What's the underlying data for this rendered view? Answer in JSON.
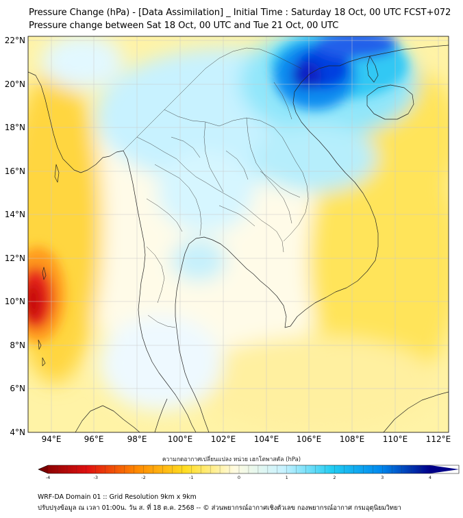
{
  "title": {
    "line1": "Pressure Change (hPa) - [Data Assimilation] _ Initial Time : Saturday 18 Oct, 00 UTC FCST+072",
    "line2": "Pressure change between Sat 18 Oct, 00 UTC and Tue 21 Oct, 00 UTC"
  },
  "map": {
    "lat_labels": [
      "22°N",
      "20°N",
      "18°N",
      "16°N",
      "14°N",
      "12°N",
      "10°N",
      "8°N",
      "6°N",
      "4°N"
    ],
    "lon_labels": [
      "94°E",
      "96°E",
      "98°E",
      "100°E",
      "102°E",
      "104°E",
      "106°E",
      "108°E",
      "110°E",
      "112°E"
    ],
    "lat_range": [
      4,
      22.2
    ],
    "lon_range": [
      93,
      112.5
    ],
    "field": "pressure change (hPa)",
    "minimum_area": "west of Andaman Sea near 10°N 93°E (about -4 hPa, red)",
    "maximum_area": "Gulf of Tonkin / northern Vietnam near 21°N 106°E (about +4 hPa, blue)"
  },
  "colorbar": {
    "title": "ความกดอากาศเปลี่ยนแปลง หน่วย เฮกโตพาสคัล (hPa)",
    "ticks": [
      "-4",
      "-3",
      "-2",
      "-1",
      "0",
      "1",
      "2",
      "3",
      "4"
    ],
    "min": -4,
    "max": 4,
    "colors": {
      "neg4": "#7a0000",
      "neg3": "#e01010",
      "neg2": "#ff8800",
      "neg1": "#ffdd22",
      "zero": "#fffbe0",
      "pos1": "#c8f2ff",
      "pos2": "#22ccf2",
      "pos3": "#0088ee",
      "pos4": "#000088"
    }
  },
  "footer": {
    "line1": "WRF-DA Domain 01 :: Grid Resolution 9km x 9km",
    "line2": "ปรับปรุงข้อมูล ณ เวลา 01:00น. วัน ส. ที่ 18 ต.ค. 2568 -- © ส่วนพยากรณ์อากาศเชิงตัวเลข กองพยากรณ์อากาศ กรมอุตุนิยมวิทยา"
  }
}
